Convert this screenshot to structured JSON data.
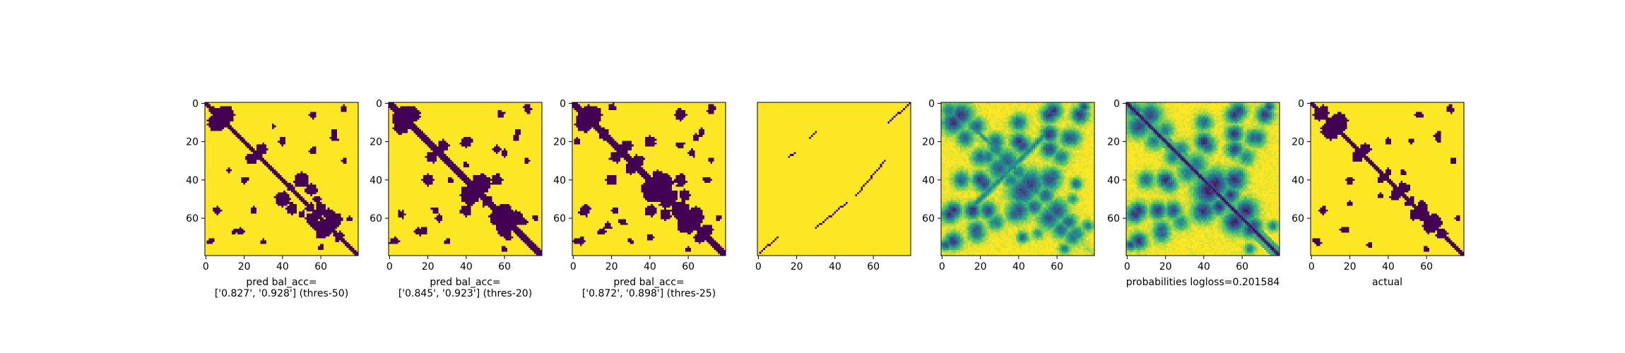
{
  "chart_data": {
    "type": "heatmap",
    "matrix_size": 80,
    "colormap": [
      "#440154",
      "#3b528b",
      "#21918c",
      "#5ec962",
      "#fde725"
    ],
    "panels": [
      {
        "id": "p1",
        "kind": "binary",
        "xlabel": [
          "pred bal_acc=",
          "['0.827', '0.928'] (thres-50)"
        ],
        "xticks": [
          "0",
          "20",
          "40",
          "60"
        ],
        "yticks": [
          "0",
          "20",
          "40",
          "60"
        ],
        "diag_width": 1.5,
        "blobs": [
          {
            "r": 6,
            "c": 10,
            "s": 5
          },
          {
            "r": 4,
            "c": 4,
            "s": 2
          },
          {
            "r": 20,
            "c": 40,
            "s": 2
          },
          {
            "r": 29,
            "c": 24,
            "s": 3
          },
          {
            "r": 40,
            "c": 50,
            "s": 4
          },
          {
            "r": 45,
            "c": 55,
            "s": 3
          },
          {
            "r": 44,
            "c": 44,
            "s": 2
          },
          {
            "r": 55,
            "c": 60,
            "s": 3
          },
          {
            "r": 62,
            "c": 66,
            "s": 4
          },
          {
            "r": 58,
            "c": 64,
            "s": 3
          },
          {
            "r": 68,
            "c": 60,
            "s": 3
          },
          {
            "r": 69,
            "c": 70,
            "s": 2
          },
          {
            "r": 2,
            "c": 72,
            "s": 1.5
          },
          {
            "r": 15,
            "c": 67,
            "s": 1.5
          },
          {
            "r": 30,
            "c": 72,
            "s": 1.5
          },
          {
            "r": 35,
            "c": 12,
            "s": 1
          },
          {
            "r": 56,
            "c": 6,
            "s": 2
          },
          {
            "r": 56,
            "c": 25,
            "s": 2
          },
          {
            "r": 67,
            "c": 18,
            "s": 2
          },
          {
            "r": 72,
            "c": 3,
            "s": 1.5
          },
          {
            "r": 55,
            "c": 54,
            "s": 2
          },
          {
            "r": 50,
            "c": 58,
            "s": 2
          },
          {
            "r": 60,
            "c": 75,
            "s": 1.5
          }
        ]
      },
      {
        "id": "p2",
        "kind": "binary",
        "xlabel": [
          "pred bal_acc=",
          "['0.845', '0.923'] (thres-20)"
        ],
        "xticks": [
          "0",
          "20",
          "40",
          "60"
        ],
        "yticks": [
          "0",
          "20",
          "40",
          "60"
        ],
        "diag_width": 2,
        "blobs": [
          {
            "r": 6,
            "c": 12,
            "s": 4
          },
          {
            "r": 8,
            "c": 4,
            "s": 3
          },
          {
            "r": 20,
            "c": 40,
            "s": 3
          },
          {
            "r": 28,
            "c": 22,
            "s": 3
          },
          {
            "r": 42,
            "c": 48,
            "s": 5
          },
          {
            "r": 46,
            "c": 40,
            "s": 3
          },
          {
            "r": 40,
            "c": 56,
            "s": 3
          },
          {
            "r": 56,
            "c": 60,
            "s": 4
          },
          {
            "r": 60,
            "c": 66,
            "s": 4
          },
          {
            "r": 66,
            "c": 60,
            "s": 3
          },
          {
            "r": 62,
            "c": 70,
            "s": 2
          },
          {
            "r": 2,
            "c": 72,
            "s": 2
          },
          {
            "r": 15,
            "c": 67,
            "s": 2
          },
          {
            "r": 26,
            "c": 60,
            "s": 2
          },
          {
            "r": 30,
            "c": 72,
            "s": 1.5
          },
          {
            "r": 58,
            "c": 6,
            "s": 2
          },
          {
            "r": 56,
            "c": 24,
            "s": 2
          },
          {
            "r": 66,
            "c": 18,
            "s": 2
          },
          {
            "r": 72,
            "c": 4,
            "s": 1.5
          },
          {
            "r": 40,
            "c": 32,
            "s": 1.5
          },
          {
            "r": 60,
            "c": 76,
            "s": 1.5
          },
          {
            "r": 52,
            "c": 50,
            "s": 2
          }
        ]
      },
      {
        "id": "p3",
        "kind": "binary",
        "xlabel": [
          "pred bal_acc=",
          "['0.872', '0.898'] (thres-25)"
        ],
        "xticks": [
          "0",
          "20",
          "40",
          "60"
        ],
        "yticks": [
          "0",
          "20",
          "40",
          "60"
        ],
        "diag_width": 2.5,
        "blobs": [
          {
            "r": 6,
            "c": 10,
            "s": 5
          },
          {
            "r": 8,
            "c": 4,
            "s": 3
          },
          {
            "r": 2,
            "c": 20,
            "s": 2
          },
          {
            "r": 16,
            "c": 16,
            "s": 3
          },
          {
            "r": 20,
            "c": 40,
            "s": 3
          },
          {
            "r": 28,
            "c": 22,
            "s": 3
          },
          {
            "r": 34,
            "c": 30,
            "s": 3
          },
          {
            "r": 42,
            "c": 46,
            "s": 6
          },
          {
            "r": 44,
            "c": 38,
            "s": 3
          },
          {
            "r": 40,
            "c": 56,
            "s": 3
          },
          {
            "r": 48,
            "c": 58,
            "s": 3
          },
          {
            "r": 56,
            "c": 56,
            "s": 5
          },
          {
            "r": 58,
            "c": 64,
            "s": 4
          },
          {
            "r": 64,
            "c": 60,
            "s": 4
          },
          {
            "r": 66,
            "c": 70,
            "s": 3
          },
          {
            "r": 2,
            "c": 72,
            "s": 2
          },
          {
            "r": 15,
            "c": 67,
            "s": 2
          },
          {
            "r": 26,
            "c": 62,
            "s": 2
          },
          {
            "r": 30,
            "c": 72,
            "s": 1.5
          },
          {
            "r": 56,
            "c": 6,
            "s": 3
          },
          {
            "r": 56,
            "c": 22,
            "s": 2
          },
          {
            "r": 64,
            "c": 18,
            "s": 2
          },
          {
            "r": 72,
            "c": 4,
            "s": 2
          },
          {
            "r": 40,
            "c": 70,
            "s": 2
          },
          {
            "r": 56,
            "c": 42,
            "s": 2
          },
          {
            "r": 60,
            "c": 76,
            "s": 1.5
          },
          {
            "r": 52,
            "c": 48,
            "s": 3
          }
        ]
      },
      {
        "id": "p4",
        "kind": "sparse",
        "xlabel": [],
        "xticks": [
          "0",
          "20",
          "40",
          "60"
        ],
        "yticks": [],
        "segments": [
          [
            [
              78,
              1
            ],
            [
              70,
              10
            ]
          ],
          [
            [
              28,
              16
            ],
            [
              26,
              19
            ]
          ],
          [
            [
              18,
              27
            ],
            [
              15,
              30
            ]
          ],
          [
            [
              65,
              30
            ],
            [
              52,
              46
            ]
          ],
          [
            [
              48,
              51
            ],
            [
              30,
              66
            ]
          ],
          [
            [
              10,
              68
            ],
            [
              0,
              79
            ]
          ]
        ]
      },
      {
        "id": "p5",
        "kind": "continuous",
        "xlabel": [],
        "xticks": [
          "0",
          "20",
          "40",
          "60"
        ],
        "yticks": [
          "0",
          "20",
          "40",
          "60"
        ],
        "diag_intensity": 0.15,
        "antidiag": true,
        "blobs": [
          {
            "r": 6,
            "c": 10,
            "s": 4,
            "v": 0.85
          },
          {
            "r": 4,
            "c": 4,
            "s": 3,
            "v": 0.6
          },
          {
            "r": 12,
            "c": 18,
            "s": 3,
            "v": 0.7
          },
          {
            "r": 20,
            "c": 28,
            "s": 3,
            "v": 0.7
          },
          {
            "r": 20,
            "c": 40,
            "s": 3,
            "v": 0.85
          },
          {
            "r": 28,
            "c": 24,
            "s": 3,
            "v": 0.6
          },
          {
            "r": 30,
            "c": 34,
            "s": 4,
            "v": 0.7
          },
          {
            "r": 36,
            "c": 40,
            "s": 3,
            "v": 0.6
          },
          {
            "r": 42,
            "c": 46,
            "s": 5,
            "v": 0.8
          },
          {
            "r": 40,
            "c": 56,
            "s": 4,
            "v": 0.75
          },
          {
            "r": 48,
            "c": 54,
            "s": 3,
            "v": 0.7
          },
          {
            "r": 56,
            "c": 60,
            "s": 4,
            "v": 0.75
          },
          {
            "r": 62,
            "c": 66,
            "s": 3,
            "v": 0.7
          },
          {
            "r": 68,
            "c": 70,
            "s": 3,
            "v": 0.6
          },
          {
            "r": 4,
            "c": 58,
            "s": 3,
            "v": 0.85
          },
          {
            "r": 2,
            "c": 74,
            "s": 2,
            "v": 0.8
          },
          {
            "r": 16,
            "c": 56,
            "s": 3,
            "v": 0.85
          },
          {
            "r": 18,
            "c": 68,
            "s": 3,
            "v": 0.7
          },
          {
            "r": 28,
            "c": 62,
            "s": 3,
            "v": 0.6
          },
          {
            "r": 40,
            "c": 10,
            "s": 3,
            "v": 0.7
          },
          {
            "r": 42,
            "c": 22,
            "s": 3,
            "v": 0.8
          },
          {
            "r": 56,
            "c": 6,
            "s": 3,
            "v": 0.85
          },
          {
            "r": 56,
            "c": 24,
            "s": 3,
            "v": 0.8
          },
          {
            "r": 58,
            "c": 38,
            "s": 3,
            "v": 0.7
          },
          {
            "r": 66,
            "c": 18,
            "s": 3,
            "v": 0.75
          },
          {
            "r": 72,
            "c": 6,
            "s": 3,
            "v": 0.85
          },
          {
            "r": 70,
            "c": 42,
            "s": 2,
            "v": 0.7
          },
          {
            "r": 64,
            "c": 76,
            "s": 2,
            "v": 0.6
          },
          {
            "r": 50,
            "c": 68,
            "s": 2,
            "v": 0.5
          }
        ]
      },
      {
        "id": "p6",
        "kind": "continuous",
        "xlabel": [
          "probabilities logloss=0.201584"
        ],
        "xticks": [
          "0",
          "20",
          "40",
          "60"
        ],
        "yticks": [
          "0",
          "20",
          "40",
          "60"
        ],
        "diag_intensity": 1.0,
        "antidiag": false,
        "blobs": [
          {
            "r": 6,
            "c": 12,
            "s": 4,
            "v": 0.8
          },
          {
            "r": 4,
            "c": 4,
            "s": 3,
            "v": 0.7
          },
          {
            "r": 14,
            "c": 20,
            "s": 3,
            "v": 0.6
          },
          {
            "r": 20,
            "c": 40,
            "s": 3,
            "v": 0.9
          },
          {
            "r": 28,
            "c": 24,
            "s": 3,
            "v": 0.6
          },
          {
            "r": 32,
            "c": 36,
            "s": 4,
            "v": 0.6
          },
          {
            "r": 42,
            "c": 46,
            "s": 5,
            "v": 0.9
          },
          {
            "r": 40,
            "c": 56,
            "s": 4,
            "v": 0.85
          },
          {
            "r": 48,
            "c": 54,
            "s": 3,
            "v": 0.85
          },
          {
            "r": 56,
            "c": 62,
            "s": 4,
            "v": 0.9
          },
          {
            "r": 64,
            "c": 66,
            "s": 3,
            "v": 0.8
          },
          {
            "r": 4,
            "c": 58,
            "s": 3,
            "v": 0.85
          },
          {
            "r": 2,
            "c": 74,
            "s": 2,
            "v": 0.8
          },
          {
            "r": 16,
            "c": 56,
            "s": 3,
            "v": 0.85
          },
          {
            "r": 18,
            "c": 68,
            "s": 3,
            "v": 0.7
          },
          {
            "r": 28,
            "c": 62,
            "s": 3,
            "v": 0.55
          },
          {
            "r": 40,
            "c": 10,
            "s": 3,
            "v": 0.65
          },
          {
            "r": 42,
            "c": 22,
            "s": 3,
            "v": 0.7
          },
          {
            "r": 56,
            "c": 6,
            "s": 3,
            "v": 0.85
          },
          {
            "r": 56,
            "c": 24,
            "s": 3,
            "v": 0.8
          },
          {
            "r": 58,
            "c": 38,
            "s": 3,
            "v": 0.65
          },
          {
            "r": 66,
            "c": 18,
            "s": 3,
            "v": 0.7
          },
          {
            "r": 72,
            "c": 6,
            "s": 3,
            "v": 0.85
          },
          {
            "r": 64,
            "c": 76,
            "s": 2,
            "v": 0.6
          }
        ]
      },
      {
        "id": "p7",
        "kind": "binary",
        "xlabel": [
          "actual"
        ],
        "xticks": [
          "0",
          "20",
          "40",
          "60"
        ],
        "yticks": [
          "0",
          "20",
          "40",
          "60"
        ],
        "diag_width": 1,
        "blobs": [
          {
            "r": 10,
            "c": 14,
            "s": 5
          },
          {
            "r": 6,
            "c": 4,
            "s": 3
          },
          {
            "r": 28,
            "c": 24,
            "s": 3
          },
          {
            "r": 20,
            "c": 40,
            "s": 2
          },
          {
            "r": 36,
            "c": 40,
            "s": 2
          },
          {
            "r": 44,
            "c": 48,
            "s": 3
          },
          {
            "r": 54,
            "c": 58,
            "s": 3
          },
          {
            "r": 62,
            "c": 64,
            "s": 4
          },
          {
            "r": 60,
            "c": 58,
            "s": 2
          },
          {
            "r": 68,
            "c": 68,
            "s": 3
          },
          {
            "r": 2,
            "c": 72,
            "s": 1.5
          },
          {
            "r": 16,
            "c": 66,
            "s": 1.5
          },
          {
            "r": 30,
            "c": 74,
            "s": 1.5
          },
          {
            "r": 56,
            "c": 6,
            "s": 2
          },
          {
            "r": 52,
            "c": 20,
            "s": 1.5
          },
          {
            "r": 66,
            "c": 18,
            "s": 2
          },
          {
            "r": 72,
            "c": 3,
            "s": 2
          },
          {
            "r": 50,
            "c": 52,
            "s": 1.5
          },
          {
            "r": 60,
            "c": 76,
            "s": 1.5
          },
          {
            "r": 48,
            "c": 36,
            "s": 1.5
          }
        ]
      }
    ]
  }
}
